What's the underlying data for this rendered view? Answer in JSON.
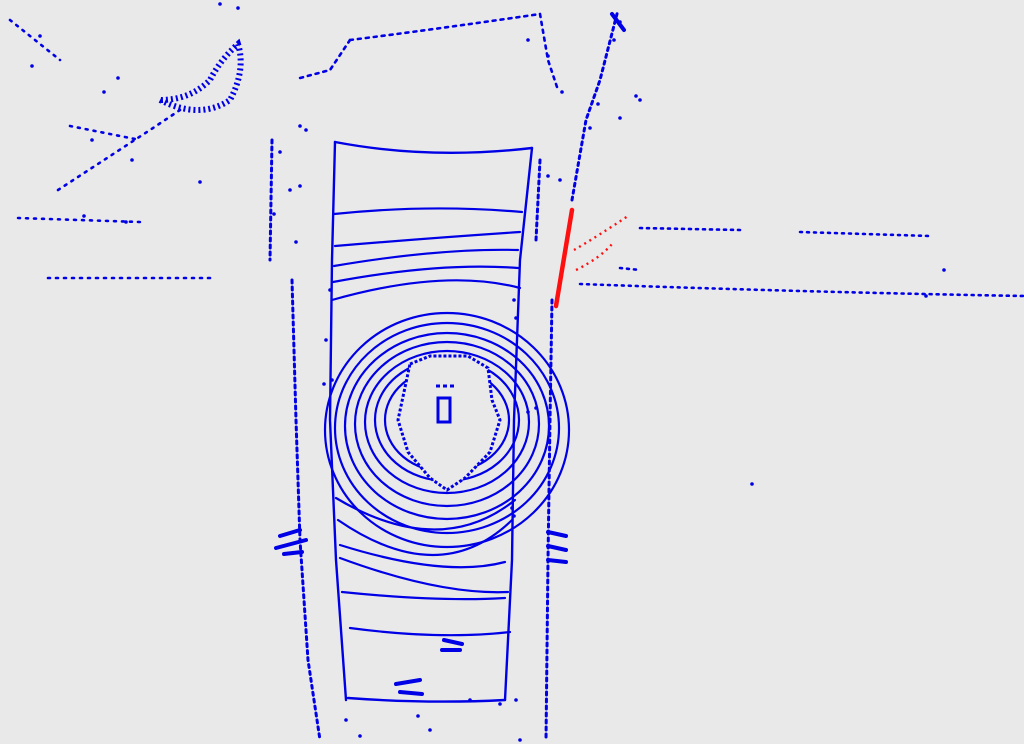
{
  "viewer": {
    "background_color": "#e9e9e9",
    "colors": {
      "point": "#0000e6",
      "highlight": "#ff1010"
    },
    "view": "top-down",
    "highlighted_segment": "traffic-pole"
  }
}
